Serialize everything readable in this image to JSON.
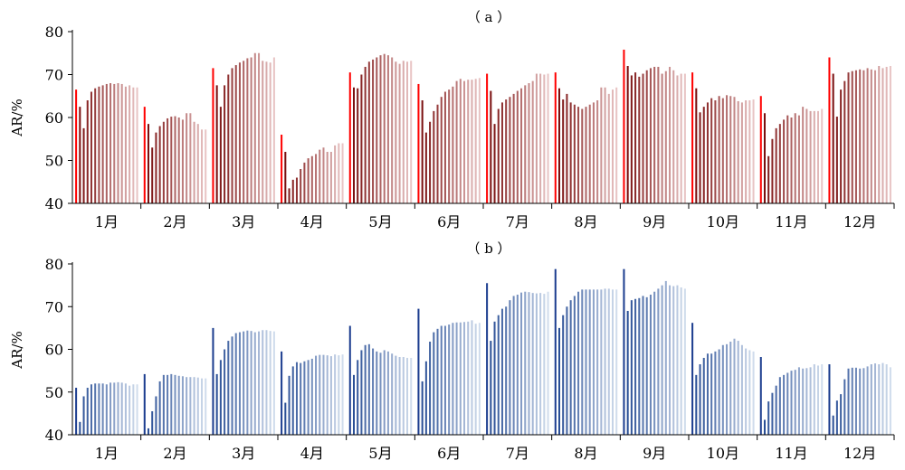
{
  "figure": {
    "months": [
      "1月",
      "2月",
      "3月",
      "4月",
      "5月",
      "6月",
      "7月",
      "8月",
      "9月",
      "10月",
      "11月",
      "12月"
    ]
  },
  "chart_data": [
    {
      "type": "bar",
      "panel_label": "（ a ）",
      "ylabel": "AR/%",
      "ylim": [
        40,
        80
      ],
      "yticks": [
        "40",
        "50",
        "60",
        "70",
        "80"
      ],
      "categories": [
        "1月",
        "2月",
        "3月",
        "4月",
        "5月",
        "6月",
        "7月",
        "8月",
        "9月",
        "10月",
        "11月",
        "12月"
      ],
      "color_start": "#ff0000",
      "color_dark": "#7a0f0f",
      "color_end": "#e8c4c4",
      "grid": false,
      "monthly_series": [
        [
          66.5,
          62.5,
          57.5,
          64,
          66,
          66.8,
          67.2,
          67.5,
          67.8,
          68,
          67.8,
          68,
          67.8,
          67.2,
          67.5,
          67,
          67
        ],
        [
          62.5,
          58.5,
          53,
          56.5,
          58,
          59,
          59.8,
          60.2,
          60.3,
          60,
          59.5,
          61,
          61,
          59,
          58.5,
          57.2,
          57.2
        ],
        [
          71.5,
          67.5,
          62.5,
          67.5,
          70,
          71.5,
          72.2,
          72.8,
          73.2,
          73.8,
          74,
          75,
          75,
          73.2,
          73,
          72.8,
          74
        ],
        [
          56,
          52,
          43.5,
          45.5,
          46,
          48,
          49.5,
          50.5,
          51,
          51.5,
          52.5,
          53,
          52,
          52,
          53.5,
          54,
          54
        ],
        [
          70.5,
          67,
          66.8,
          70,
          71.8,
          73,
          73.5,
          74,
          74.5,
          74.8,
          74.5,
          74,
          73,
          72.5,
          73.2,
          73,
          73.2
        ],
        [
          67.8,
          64,
          56.5,
          59,
          61.5,
          63,
          64.8,
          66,
          66.5,
          67.2,
          68.5,
          69,
          68.5,
          68.8,
          68.8,
          69,
          69.2
        ],
        [
          70.2,
          66.2,
          58.5,
          62,
          63.5,
          64.2,
          64.8,
          65.5,
          66.2,
          66.8,
          67.5,
          68,
          68.5,
          70.2,
          70.2,
          70,
          70.2
        ],
        [
          70.5,
          66.8,
          64.2,
          65.5,
          63.5,
          63,
          62.5,
          62,
          62.5,
          63,
          63.5,
          64,
          67,
          67,
          65.5,
          66.5,
          67
        ],
        [
          75.8,
          72,
          69.8,
          70.5,
          69.5,
          70.2,
          71,
          71.5,
          71.8,
          71.8,
          70.2,
          70.8,
          71.8,
          71,
          69.8,
          70.2,
          70.2
        ],
        [
          70.5,
          66.8,
          61.2,
          62.5,
          63.5,
          64.5,
          64,
          65,
          64.5,
          65.2,
          65,
          64.8,
          63.8,
          63.5,
          64,
          64,
          64.2
        ],
        [
          65,
          61,
          51,
          55,
          57.5,
          58.5,
          59.5,
          60.5,
          60,
          61,
          60.5,
          62.5,
          62,
          61.5,
          61.5,
          61.5,
          62
        ],
        [
          74,
          70.2,
          60.2,
          66.5,
          68.5,
          70.5,
          70.8,
          71,
          71.2,
          71,
          71.5,
          71.2,
          71,
          72,
          71.5,
          71.8,
          72
        ]
      ]
    },
    {
      "type": "bar",
      "panel_label": "（ b ）",
      "ylabel": "AR/%",
      "ylim": [
        40,
        80
      ],
      "yticks": [
        "40",
        "50",
        "60",
        "70",
        "80"
      ],
      "categories": [
        "1月",
        "2月",
        "3月",
        "4月",
        "5月",
        "6月",
        "7月",
        "8月",
        "9月",
        "10月",
        "11月",
        "12月"
      ],
      "color_start": "#1c3d8f",
      "color_dark": "#2a4f96",
      "color_end": "#d0dcec",
      "grid": false,
      "monthly_series": [
        [
          51,
          43,
          49,
          51,
          51.8,
          52,
          52,
          52,
          51.8,
          52.2,
          52.2,
          52.3,
          52.2,
          52,
          51.5,
          51.8,
          51.8
        ],
        [
          54.2,
          41.5,
          45.5,
          49,
          52.5,
          54,
          54,
          54.2,
          54,
          53.8,
          53.7,
          53.5,
          53.5,
          53.5,
          53.4,
          53.2,
          53.2
        ],
        [
          65,
          54.2,
          57.5,
          60,
          62,
          63,
          63.8,
          64,
          64.2,
          64.4,
          64.3,
          64,
          64.2,
          64.5,
          64.5,
          64.3,
          64.2
        ],
        [
          59.5,
          47.5,
          53.8,
          56,
          57,
          56.8,
          57.2,
          57.5,
          57.8,
          58.5,
          58.7,
          58.7,
          58.6,
          58.4,
          58.8,
          58.6,
          58.8
        ],
        [
          65.5,
          54,
          57.5,
          59.8,
          61,
          61.2,
          60.2,
          59.5,
          59.2,
          59.8,
          59.5,
          59,
          58.5,
          58.2,
          58.2,
          58,
          58
        ],
        [
          69.5,
          52.5,
          57.2,
          61.8,
          64,
          64.8,
          65.5,
          65.5,
          65.8,
          66.2,
          66.3,
          66.3,
          66.4,
          66.5,
          66.8,
          66,
          66.2
        ],
        [
          75.5,
          62,
          66.5,
          68,
          69.5,
          70,
          71.5,
          72.5,
          72.8,
          73.3,
          73.5,
          73.4,
          73.2,
          73.1,
          73.2,
          73,
          73.5
        ],
        [
          78.8,
          65,
          68,
          70,
          71.5,
          72.5,
          73.5,
          74,
          74,
          74,
          74,
          74,
          74,
          74.2,
          74.2,
          74,
          74
        ],
        [
          78.8,
          69,
          71.5,
          71.8,
          72,
          72.5,
          72.2,
          72.8,
          73.5,
          74.2,
          75,
          76,
          75,
          74.8,
          75,
          74.5,
          74.2
        ],
        [
          66.2,
          54,
          56.5,
          58,
          59,
          59,
          59.5,
          60,
          61,
          61.2,
          61.8,
          62.5,
          62,
          61,
          60.2,
          59.8,
          59.5
        ],
        [
          58.2,
          43.5,
          47.8,
          49.8,
          51.5,
          53.5,
          54,
          54.5,
          55,
          55.2,
          55.8,
          55.5,
          55.6,
          55.8,
          56.5,
          56.2,
          56.5
        ],
        [
          56.5,
          44.5,
          48,
          49.5,
          53,
          55.5,
          55.7,
          55.7,
          55.5,
          55.6,
          56,
          56.5,
          56.7,
          56.5,
          56.8,
          56.5,
          55.8
        ]
      ]
    }
  ]
}
